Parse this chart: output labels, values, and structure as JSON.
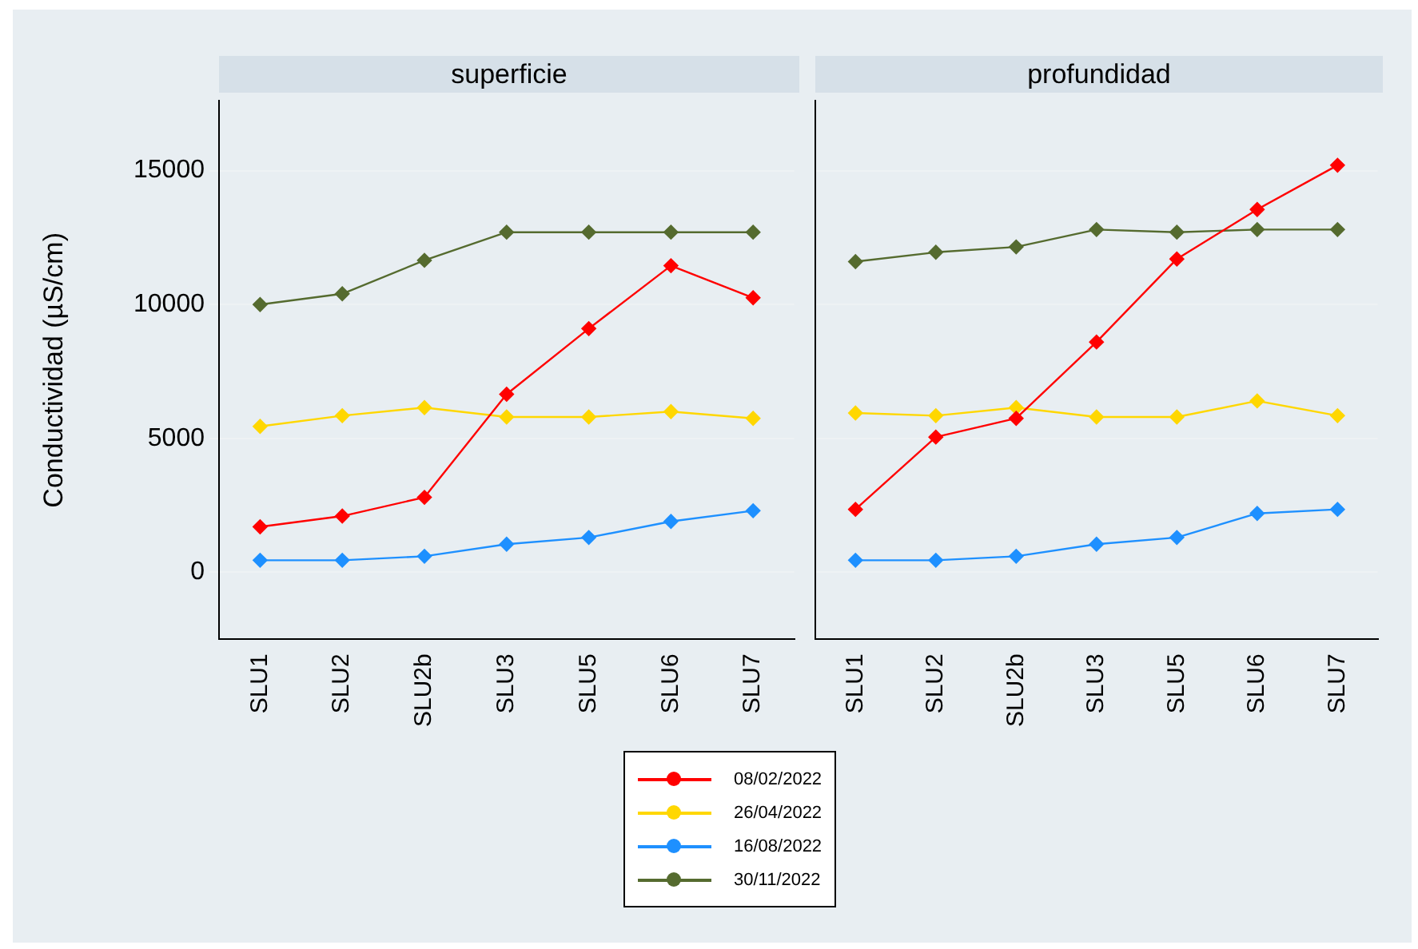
{
  "chart_data": [
    {
      "type": "line",
      "title": "superficie",
      "ylabel": "Conductividad (µS/cm)",
      "categories": [
        "SLU1",
        "SLU2",
        "SLU2b",
        "SLU3",
        "SLU5",
        "SLU6",
        "SLU7"
      ],
      "series": [
        {
          "name": "08/02/2022",
          "color": "#ff0000",
          "values": [
            1700,
            2100,
            2800,
            6650,
            9100,
            11450,
            10250
          ]
        },
        {
          "name": "26/04/2022",
          "color": "#ffd700",
          "values": [
            5450,
            5850,
            6150,
            5800,
            5800,
            6000,
            5750
          ]
        },
        {
          "name": "16/08/2022",
          "color": "#1e90ff",
          "values": [
            450,
            450,
            600,
            1050,
            1300,
            1900,
            2300
          ]
        },
        {
          "name": "30/11/2022",
          "color": "#556b2f",
          "values": [
            10000,
            10400,
            11650,
            12700,
            12700,
            12700,
            12700
          ]
        }
      ],
      "ylim": [
        -2500,
        17600
      ],
      "yticks": [
        0,
        5000,
        10000,
        15000
      ],
      "grid": "y",
      "legend": "bottom",
      "marker": "diamond",
      "line_style": "solid"
    },
    {
      "type": "line",
      "title": "profundidad",
      "categories": [
        "SLU1",
        "SLU2",
        "SLU2b",
        "SLU3",
        "SLU5",
        "SLU6",
        "SLU7"
      ],
      "series": [
        {
          "color": "#ff0000",
          "values": [
            2350,
            5050,
            5750,
            8600,
            11700,
            13550,
            15200
          ]
        },
        {
          "color": "#ffd700",
          "values": [
            5950,
            5850,
            6150,
            5800,
            5800,
            6400,
            5850
          ]
        },
        {
          "color": "#1e90ff",
          "values": [
            450,
            450,
            600,
            1050,
            1300,
            2200,
            2350
          ]
        },
        {
          "color": "#556b2f",
          "values": [
            11600,
            11950,
            12150,
            12800,
            12700,
            12800,
            12800
          ]
        }
      ],
      "ylim": [
        -2500,
        17600
      ],
      "yticks": [
        0,
        5000,
        10000,
        15000
      ],
      "grid": "y",
      "tick_labels": "x",
      "marker": "diamond",
      "line_style": "solid"
    }
  ]
}
